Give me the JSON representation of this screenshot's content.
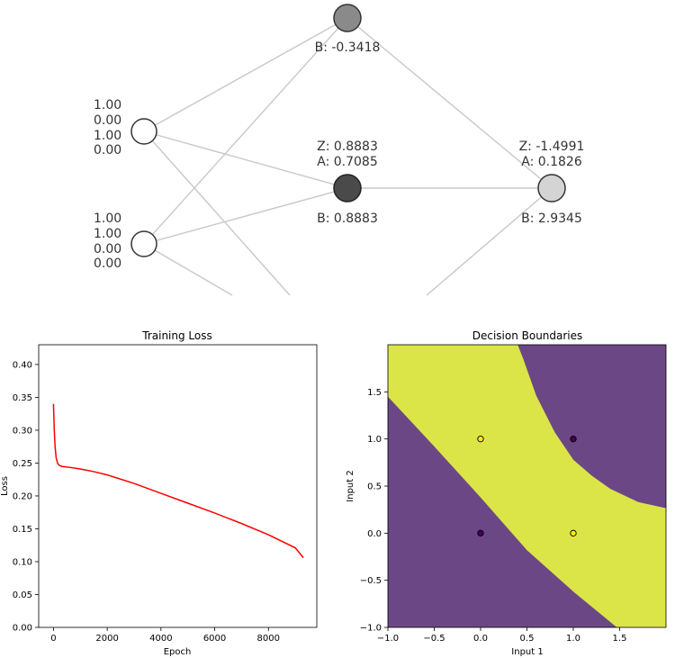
{
  "network": {
    "input_nodes": [
      {
        "values": [
          "1.00",
          "0.00",
          "1.00",
          "0.00"
        ]
      },
      {
        "values": [
          "1.00",
          "1.00",
          "0.00",
          "0.00"
        ]
      }
    ],
    "hidden_nodes": [
      {
        "z": "",
        "a": "",
        "b": "B: -0.3418",
        "activation": 0.42
      },
      {
        "z": "Z: 0.8883",
        "a": "A: 0.7085",
        "b": "B: 0.8883",
        "activation": 0.7085
      }
    ],
    "output_node": {
      "z": "Z: -1.4991",
      "a": "A: 0.1826",
      "b": "B: 2.9345",
      "activation": 0.1826
    }
  },
  "chart_data": [
    {
      "type": "line",
      "title": "Training Loss",
      "xlabel": "Epoch",
      "ylabel": "Loss",
      "xlim": [
        -550,
        9800
      ],
      "ylim": [
        0,
        0.43
      ],
      "xticks": [
        0,
        2000,
        4000,
        6000,
        8000
      ],
      "yticks": [
        0.0,
        0.05,
        0.1,
        0.15,
        0.2,
        0.25,
        0.3,
        0.35,
        0.4
      ],
      "series": [
        {
          "color": "#ff0000",
          "x": [
            0,
            30,
            60,
            100,
            150,
            200,
            300,
            500,
            1000,
            1500,
            2000,
            3000,
            4000,
            5000,
            6000,
            7000,
            8000,
            9000,
            9300
          ],
          "y": [
            0.34,
            0.3,
            0.275,
            0.258,
            0.25,
            0.247,
            0.245,
            0.244,
            0.241,
            0.237,
            0.232,
            0.219,
            0.204,
            0.189,
            0.174,
            0.158,
            0.141,
            0.121,
            0.106
          ]
        }
      ]
    },
    {
      "type": "heatmap",
      "title": "Decision Boundaries",
      "xlabel": "Input 1",
      "ylabel": "Input 2",
      "xlim": [
        -1.0,
        2.0
      ],
      "ylim": [
        -1.0,
        2.0
      ],
      "xticks": [
        -1.0,
        -0.5,
        0.0,
        0.5,
        1.0,
        1.5
      ],
      "yticks": [
        -1.0,
        -0.5,
        0.0,
        0.5,
        1.0,
        1.5
      ],
      "region_colors": {
        "class_0": "#6c4786",
        "class_1": "#dbe548"
      },
      "points": [
        {
          "x": 0,
          "y": 0,
          "class": 0
        },
        {
          "x": 0,
          "y": 1,
          "class": 1
        },
        {
          "x": 1,
          "y": 0,
          "class": 1
        },
        {
          "x": 1,
          "y": 1,
          "class": 0
        }
      ]
    }
  ]
}
